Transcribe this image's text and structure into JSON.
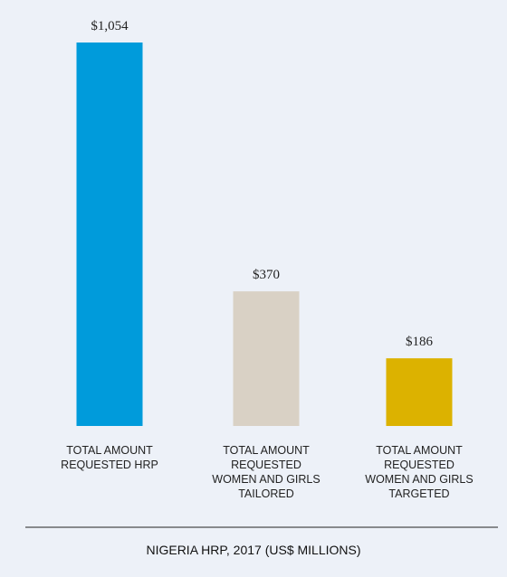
{
  "chart_data": {
    "type": "bar",
    "title": "NIGERIA HRP, 2017 (US$ MILLIONS)",
    "categories": [
      "TOTAL AMOUNT REQUESTED HRP",
      "TOTAL AMOUNT REQUESTED WOMEN AND GIRLS TAILORED",
      "TOTAL AMOUNT REQUESTED WOMEN AND GIRLS TARGETED"
    ],
    "values": [
      1054,
      370,
      186
    ],
    "value_labels": [
      "$1,054",
      "$370",
      "$186"
    ],
    "colors": [
      "#009bdb",
      "#d9d1c5",
      "#dcb200"
    ]
  }
}
